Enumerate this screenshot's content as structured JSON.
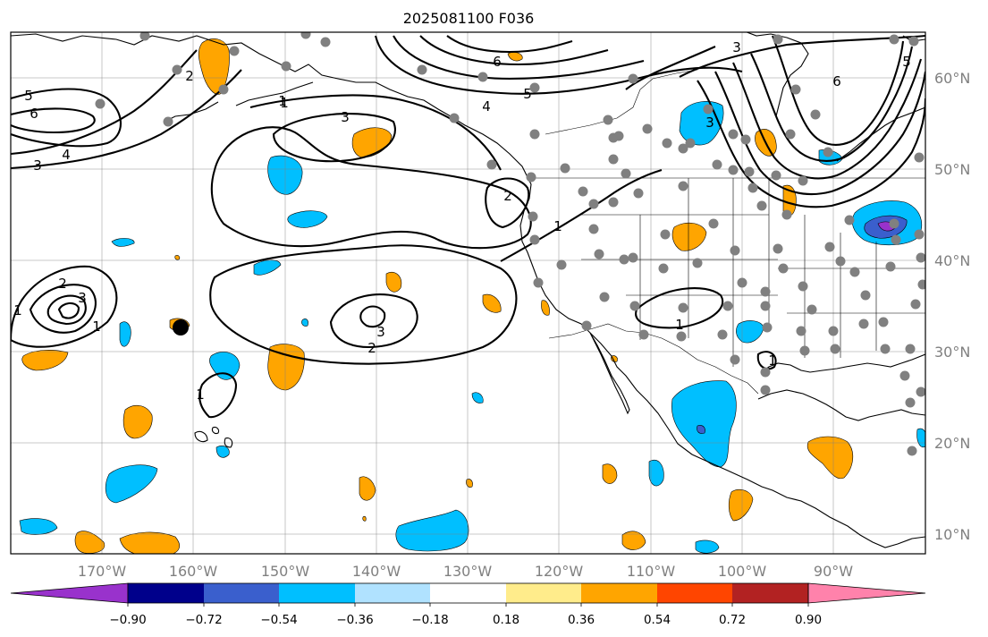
{
  "title": "2025081100 F036",
  "lon_labels": [
    {
      "text": "170°W",
      "lon": -170
    },
    {
      "text": "160°W",
      "lon": -160
    },
    {
      "text": "150°W",
      "lon": -150
    },
    {
      "text": "140°W",
      "lon": -140
    },
    {
      "text": "130°W",
      "lon": -130
    },
    {
      "text": "120°W",
      "lon": -120
    },
    {
      "text": "110°W",
      "lon": -110
    },
    {
      "text": "100°W",
      "lon": -100
    },
    {
      "text": "90°W",
      "lon": -90
    }
  ],
  "lat_labels": [
    {
      "text": "60°N",
      "lat": 60
    },
    {
      "text": "50°N",
      "lat": 50
    },
    {
      "text": "40°N",
      "lat": 40
    },
    {
      "text": "30°N",
      "lat": 30
    },
    {
      "text": "20°N",
      "lat": 20
    },
    {
      "text": "10°N",
      "lat": 10
    }
  ],
  "colorbar": {
    "colors": [
      "#9932cc",
      "#00008b",
      "#3a5fcd",
      "#00bfff",
      "#b0e2ff",
      "#ffffff",
      "#ffec8b",
      "#ffa500",
      "#ff4500",
      "#b22222",
      "#ff82ab"
    ],
    "tick_labels": [
      "−0.90",
      "−0.72",
      "−0.54",
      "−0.36",
      "−0.18",
      "0.18",
      "0.36",
      "0.54",
      "0.72",
      "0.90"
    ]
  },
  "contour_labels": [
    "5",
    "6",
    "3",
    "4",
    "1",
    "2",
    "3",
    "1",
    "6",
    "5",
    "4",
    "3",
    "2",
    "1",
    "3",
    "6",
    "5",
    "1",
    "2",
    "3",
    "1",
    "2",
    "3",
    "1",
    "1",
    "1"
  ]
}
